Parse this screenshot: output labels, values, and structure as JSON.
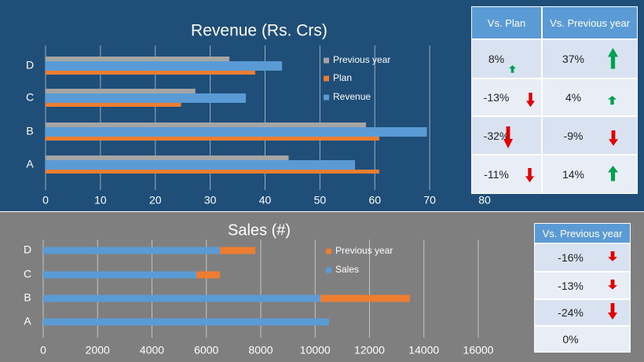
{
  "chart_data": [
    {
      "type": "bar",
      "orientation": "horizontal",
      "title": "Revenue (Rs. Crs)",
      "categories": [
        "A",
        "B",
        "C",
        "D"
      ],
      "series": [
        {
          "name": "Previous year",
          "color": "#a5a5a5",
          "values": [
            44.3,
            58.4,
            27.3,
            33.5
          ]
        },
        {
          "name": "Plan",
          "color": "#ed7d31",
          "values": [
            60.8,
            60.8,
            24.7,
            38.2
          ]
        },
        {
          "name": "Revenue",
          "color": "#5b9bd5",
          "values": [
            56.4,
            69.5,
            36.5,
            43.1
          ]
        }
      ],
      "xlim": [
        0,
        80
      ],
      "xticks": [
        0,
        10,
        20,
        30,
        40,
        50,
        60,
        70,
        80
      ],
      "grid": true
    },
    {
      "type": "bar",
      "orientation": "horizontal",
      "title": "Sales (#)",
      "categories": [
        "A",
        "B",
        "C",
        "D"
      ],
      "series": [
        {
          "name": "Previous year",
          "color": "#ed7d31",
          "values": [
            10510,
            13490,
            6500,
            7800
          ]
        },
        {
          "name": "Sales",
          "color": "#5b9bd5",
          "values": [
            10510,
            10190,
            5630,
            6500
          ]
        }
      ],
      "xlim": [
        0,
        16000
      ],
      "xticks": [
        0,
        2000,
        4000,
        6000,
        8000,
        10000,
        12000,
        14000,
        16000
      ],
      "grid": true
    }
  ],
  "tables": {
    "revenue_table": {
      "header": [
        "Vs. Plan",
        "Vs. Previous year"
      ],
      "rows": [
        [
          "8%",
          "37%"
        ],
        [
          "-13%",
          "4%"
        ],
        [
          "-32%",
          "-9%"
        ],
        [
          "-11%",
          "14%"
        ]
      ]
    },
    "sales_table": {
      "header": [
        "Vs. Previous year"
      ],
      "rows": [
        [
          "-16%"
        ],
        [
          "-13%"
        ],
        [
          "-24%"
        ],
        [
          "0%"
        ]
      ]
    }
  }
}
